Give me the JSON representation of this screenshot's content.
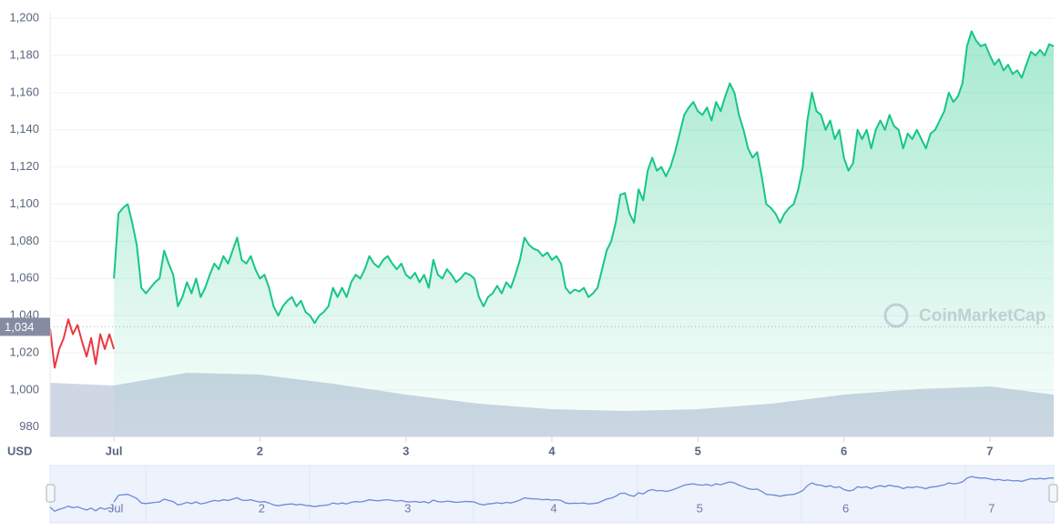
{
  "chart_data": {
    "type": "line",
    "ylabel": "USD",
    "watermark": "CoinMarketCap",
    "xlim": [
      -10.5,
      154.5
    ],
    "xticks": [
      {
        "value": 0,
        "label": "Jul"
      },
      {
        "value": 24,
        "label": "2"
      },
      {
        "value": 48,
        "label": "3"
      },
      {
        "value": 72,
        "label": "4"
      },
      {
        "value": 96,
        "label": "5"
      },
      {
        "value": 120,
        "label": "6"
      },
      {
        "value": 144,
        "label": "7"
      }
    ],
    "ylim": [
      975,
      1203
    ],
    "yticks": [
      980,
      {
        "value": 1000,
        "label": "1,000"
      },
      {
        "value": 1020,
        "label": "1,020"
      },
      {
        "value": 1040,
        "label": "1,040"
      },
      {
        "value": 1060,
        "label": "1,060"
      },
      {
        "value": 1080,
        "label": "1,080"
      },
      {
        "value": 1100,
        "label": "1,100"
      },
      {
        "value": 1120,
        "label": "1,120"
      },
      {
        "value": 1140,
        "label": "1,140"
      },
      {
        "value": 1160,
        "label": "1,160"
      },
      {
        "value": 1180,
        "label": "1,180"
      },
      {
        "value": 1200,
        "label": "1,200"
      }
    ],
    "grid": true,
    "reference": {
      "value": 1034,
      "label": "1,034"
    },
    "series": [
      {
        "color": "#ea3943",
        "x": [
          -10.5,
          -9.75,
          -9,
          -8.25,
          -7.5,
          -6.75,
          -6,
          -5.25,
          -4.5,
          -3.75,
          -3,
          -2.25,
          -1.5,
          -0.75,
          0
        ],
        "values": [
          1033,
          1012,
          1022,
          1028,
          1038,
          1030,
          1035,
          1026,
          1018,
          1028,
          1014,
          1030,
          1022,
          1030,
          1022
        ]
      },
      {
        "color": "#16c784",
        "x": [
          0,
          0.75,
          1.5,
          2.25,
          3,
          3.75,
          4.5,
          5.25,
          6,
          6.75,
          7.5,
          8.25,
          9,
          9.75,
          10.5,
          11.25,
          12,
          12.75,
          13.5,
          14.25,
          15,
          15.75,
          16.5,
          17.25,
          18,
          18.75,
          19.5,
          20.25,
          21,
          21.75,
          22.5,
          23.25,
          24,
          24.75,
          25.5,
          26.25,
          27,
          27.75,
          28.5,
          29.25,
          30,
          30.75,
          31.5,
          32.25,
          33,
          33.75,
          34.5,
          35.25,
          36,
          36.75,
          37.5,
          38.25,
          39,
          39.75,
          40.5,
          41.25,
          42,
          42.75,
          43.5,
          44.25,
          45,
          45.75,
          46.5,
          47.25,
          48,
          48.75,
          49.5,
          50.25,
          51,
          51.75,
          52.5,
          53.25,
          54,
          54.75,
          55.5,
          56.25,
          57,
          57.75,
          58.5,
          59.25,
          60,
          60.75,
          61.5,
          62.25,
          63,
          63.75,
          64.5,
          65.25,
          66,
          66.75,
          67.5,
          68.25,
          69,
          69.75,
          70.5,
          71.25,
          72,
          72.75,
          73.5,
          74.25,
          75,
          75.75,
          76.5,
          77.25,
          78,
          78.75,
          79.5,
          80.25,
          81,
          81.75,
          82.5,
          83.25,
          84,
          84.75,
          85.5,
          86.25,
          87,
          87.75,
          88.5,
          89.25,
          90,
          90.75,
          91.5,
          92.25,
          93,
          93.75,
          94.5,
          95.25,
          96,
          96.75,
          97.5,
          98.25,
          99,
          99.75,
          100.5,
          101.25,
          102,
          102.75,
          103.5,
          104.25,
          105,
          105.75,
          106.5,
          107.25,
          108,
          108.75,
          109.5,
          110.25,
          111,
          111.75,
          112.5,
          113.25,
          114,
          114.75,
          115.5,
          116.25,
          117,
          117.75,
          118.5,
          119.25,
          120,
          120.75,
          121.5,
          122.25,
          123,
          123.75,
          124.5,
          125.25,
          126,
          126.75,
          127.5,
          128.25,
          129,
          129.75,
          130.5,
          131.25,
          132,
          132.75,
          133.5,
          134.25,
          135,
          135.75,
          136.5,
          137.25,
          138,
          138.75,
          139.5,
          140.25,
          141,
          141.75,
          142.5,
          143.25,
          144,
          144.75,
          145.5,
          146.25,
          147,
          147.75,
          148.5,
          149.25,
          150,
          150.75,
          151.5,
          152.25,
          153,
          153.75,
          154.5
        ],
        "values": [
          1060,
          1095,
          1098,
          1100,
          1090,
          1078,
          1055,
          1052,
          1055,
          1058,
          1060,
          1075,
          1068,
          1062,
          1045,
          1050,
          1058,
          1052,
          1060,
          1050,
          1055,
          1062,
          1068,
          1065,
          1072,
          1068,
          1075,
          1082,
          1070,
          1068,
          1072,
          1065,
          1060,
          1062,
          1055,
          1045,
          1040,
          1045,
          1048,
          1050,
          1045,
          1048,
          1042,
          1040,
          1036,
          1040,
          1042,
          1045,
          1055,
          1050,
          1055,
          1050,
          1058,
          1062,
          1060,
          1065,
          1072,
          1068,
          1066,
          1070,
          1072,
          1068,
          1065,
          1068,
          1062,
          1060,
          1063,
          1058,
          1062,
          1055,
          1070,
          1062,
          1060,
          1065,
          1062,
          1058,
          1060,
          1063,
          1062,
          1060,
          1050,
          1045,
          1050,
          1052,
          1056,
          1052,
          1058,
          1055,
          1062,
          1070,
          1082,
          1078,
          1076,
          1075,
          1072,
          1074,
          1070,
          1072,
          1068,
          1055,
          1052,
          1054,
          1053,
          1055,
          1050,
          1052,
          1055,
          1065,
          1075,
          1080,
          1090,
          1105,
          1106,
          1095,
          1090,
          1108,
          1102,
          1118,
          1125,
          1118,
          1120,
          1115,
          1120,
          1128,
          1138,
          1148,
          1152,
          1155,
          1150,
          1148,
          1152,
          1145,
          1155,
          1150,
          1158,
          1165,
          1160,
          1148,
          1140,
          1130,
          1125,
          1128,
          1115,
          1100,
          1098,
          1095,
          1090,
          1095,
          1098,
          1100,
          1108,
          1120,
          1145,
          1160,
          1150,
          1148,
          1140,
          1145,
          1135,
          1140,
          1125,
          1118,
          1122,
          1140,
          1135,
          1140,
          1130,
          1140,
          1145,
          1140,
          1148,
          1142,
          1140,
          1130,
          1138,
          1135,
          1140,
          1135,
          1130,
          1138,
          1140,
          1145,
          1150,
          1160,
          1155,
          1158,
          1165,
          1185,
          1193,
          1188,
          1185,
          1186,
          1180,
          1175,
          1178,
          1172,
          1175,
          1170,
          1172,
          1168,
          1175,
          1182,
          1180,
          1183,
          1180,
          1186,
          1185
        ]
      }
    ],
    "volume": {
      "color": "#cfd6e4",
      "ylim": [
        0,
        100
      ],
      "x": [
        -10.5,
        0,
        12,
        24,
        36,
        48,
        60,
        72,
        84,
        96,
        108,
        120,
        132,
        144,
        154.5
      ],
      "values": [
        59,
        56,
        70,
        68,
        58,
        46,
        36,
        30,
        28,
        30,
        36,
        46,
        52,
        55,
        46
      ]
    }
  }
}
